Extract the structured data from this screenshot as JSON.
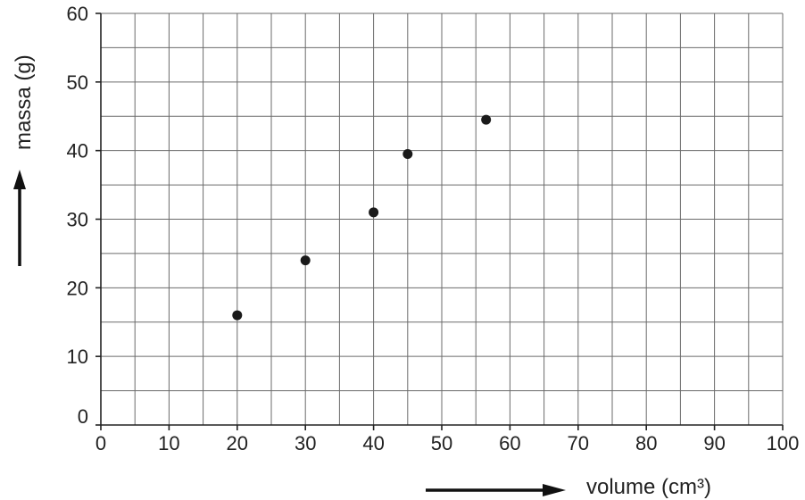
{
  "chart_data": {
    "type": "scatter",
    "xlabel": "volume (cm³)",
    "ylabel": "massa (g)",
    "xlim": [
      0,
      100
    ],
    "ylim": [
      0,
      60
    ],
    "x_ticks": [
      "0",
      "10",
      "20",
      "30",
      "40",
      "50",
      "60",
      "70",
      "80",
      "90",
      "100"
    ],
    "y_ticks": [
      "0",
      "10",
      "20",
      "30",
      "40",
      "50",
      "60"
    ],
    "grid": true,
    "x_grid_step": 5,
    "y_grid_step": 5,
    "points": [
      {
        "x": 20,
        "y": 16
      },
      {
        "x": 30,
        "y": 24
      },
      {
        "x": 40,
        "y": 31
      },
      {
        "x": 45,
        "y": 39.5
      },
      {
        "x": 56.5,
        "y": 44.5
      }
    ],
    "marker_color": "#1a1a1a"
  }
}
